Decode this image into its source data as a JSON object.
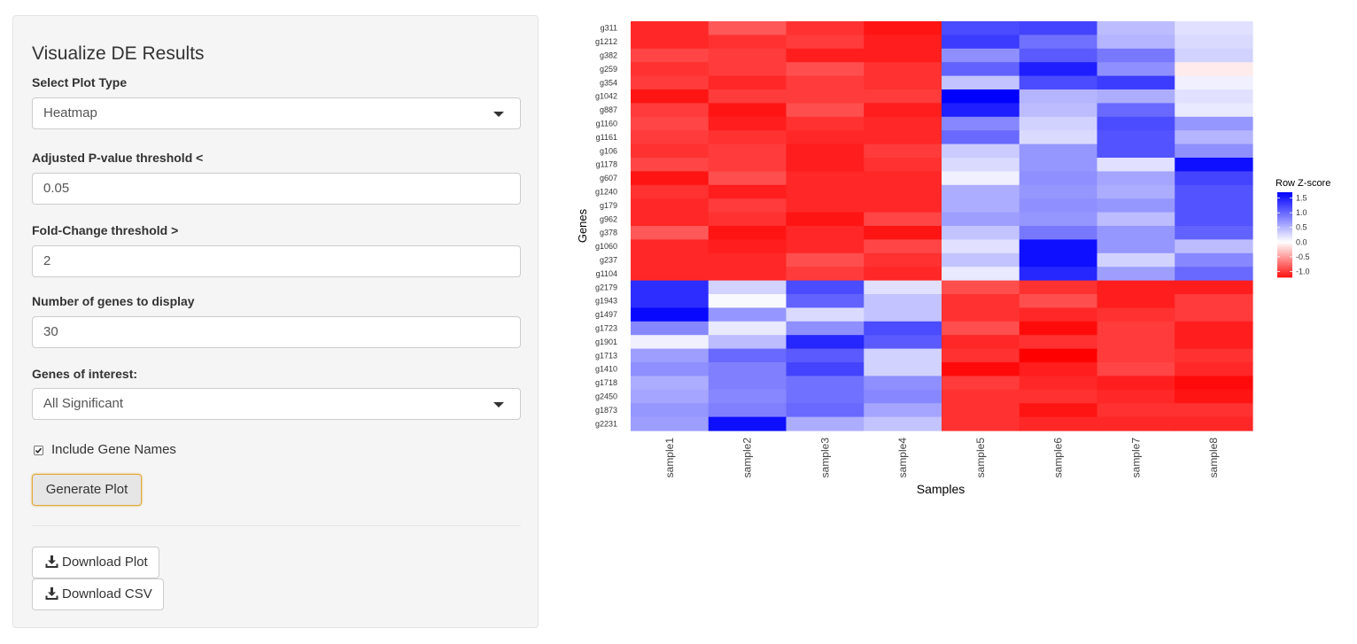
{
  "sidebar": {
    "title": "Visualize DE Results",
    "plot_type": {
      "label": "Select Plot Type",
      "value": "Heatmap"
    },
    "pvalue": {
      "label": "Adjusted P-value threshold <",
      "value": "0.05"
    },
    "fold_change": {
      "label": "Fold-Change threshold >",
      "value": "2"
    },
    "num_genes": {
      "label": "Number of genes to display",
      "value": "30"
    },
    "genes_of_interest": {
      "label": "Genes of interest:",
      "value": "All Significant"
    },
    "include_gene_names": {
      "label": "Include Gene Names",
      "checked": true
    },
    "generate_label": "Generate Plot",
    "download_plot_label": "Download Plot",
    "download_csv_label": "Download CSV",
    "icons": {
      "dropdown": "chevron-down-icon",
      "download": "download-icon",
      "checkbox": "checkmark-icon"
    }
  },
  "chart_data": {
    "type": "heatmap",
    "xlabel": "Samples",
    "ylabel": "Genes",
    "columns": [
      "sample1",
      "sample2",
      "sample3",
      "sample4",
      "sample5",
      "sample6",
      "sample7",
      "sample8"
    ],
    "rows": [
      "g311",
      "g1212",
      "g382",
      "g259",
      "g354",
      "g1042",
      "g887",
      "g1160",
      "g1161",
      "g106",
      "g1178",
      "g607",
      "g1240",
      "g179",
      "g962",
      "g378",
      "g1060",
      "g237",
      "g1104",
      "g2179",
      "g1943",
      "g1497",
      "g1723",
      "g1901",
      "g1713",
      "g1410",
      "g1718",
      "g2450",
      "g1873",
      "g2231"
    ],
    "values": [
      [
        -1.1,
        -0.85,
        -1.05,
        -1.2,
        1.2,
        1.25,
        0.45,
        0.2
      ],
      [
        -1.1,
        -1.05,
        -1.0,
        -1.15,
        1.3,
        0.95,
        0.5,
        0.25
      ],
      [
        -0.95,
        -1.0,
        -1.15,
        -1.15,
        0.75,
        1.1,
        0.9,
        0.3
      ],
      [
        -1.05,
        -1.0,
        -0.9,
        -1.05,
        1.05,
        1.5,
        0.75,
        -0.1
      ],
      [
        -1.0,
        -1.1,
        -1.0,
        -1.05,
        0.4,
        1.2,
        1.3,
        0.1
      ],
      [
        -1.2,
        -1.0,
        -1.0,
        -1.0,
        1.7,
        0.5,
        0.55,
        0.2
      ],
      [
        -1.0,
        -1.2,
        -0.9,
        -1.15,
        1.5,
        0.45,
        1.0,
        0.15
      ],
      [
        -0.95,
        -1.15,
        -1.05,
        -1.1,
        0.8,
        0.3,
        1.2,
        0.7
      ],
      [
        -1.0,
        -1.05,
        -1.1,
        -1.1,
        1.0,
        0.25,
        1.15,
        0.5
      ],
      [
        -1.05,
        -1.0,
        -1.15,
        -1.0,
        0.35,
        0.7,
        1.15,
        0.75
      ],
      [
        -0.95,
        -1.0,
        -1.15,
        -1.05,
        0.25,
        0.7,
        0.2,
        1.6
      ],
      [
        -1.2,
        -0.9,
        -1.1,
        -1.1,
        0.1,
        0.75,
        0.6,
        1.25
      ],
      [
        -1.05,
        -1.15,
        -1.1,
        -1.1,
        0.55,
        0.7,
        0.55,
        1.15
      ],
      [
        -1.1,
        -1.0,
        -1.1,
        -1.1,
        0.55,
        0.75,
        0.7,
        1.15
      ],
      [
        -1.1,
        -1.05,
        -1.2,
        -0.95,
        0.65,
        0.7,
        0.45,
        1.15
      ],
      [
        -0.85,
        -1.2,
        -1.1,
        -1.2,
        0.4,
        0.9,
        0.7,
        1.05
      ],
      [
        -1.1,
        -1.15,
        -1.1,
        -0.95,
        0.2,
        1.6,
        0.7,
        0.45
      ],
      [
        -1.1,
        -1.1,
        -0.9,
        -1.05,
        0.4,
        1.6,
        0.3,
        0.8
      ],
      [
        -1.1,
        -1.1,
        -1.0,
        -1.1,
        0.15,
        1.45,
        0.65,
        1.0
      ],
      [
        1.4,
        0.3,
        1.2,
        0.2,
        -0.9,
        -1.05,
        -1.15,
        -1.15
      ],
      [
        1.4,
        0.05,
        1.05,
        0.4,
        -1.05,
        -0.9,
        -1.15,
        -1.0
      ],
      [
        1.65,
        0.7,
        0.25,
        0.4,
        -1.05,
        -1.1,
        -1.05,
        -1.0
      ],
      [
        0.8,
        0.15,
        0.75,
        1.2,
        -0.9,
        -1.25,
        -1.0,
        -1.15
      ],
      [
        0.1,
        0.45,
        1.45,
        1.1,
        -1.1,
        -1.05,
        -1.0,
        -1.15
      ],
      [
        0.65,
        1.0,
        1.1,
        0.3,
        -1.05,
        -1.3,
        -1.0,
        -1.05
      ],
      [
        0.75,
        0.85,
        1.25,
        0.3,
        -1.25,
        -1.15,
        -0.95,
        -1.1
      ],
      [
        0.55,
        0.85,
        0.95,
        0.75,
        -1.0,
        -1.1,
        -1.15,
        -1.25
      ],
      [
        0.6,
        0.8,
        0.95,
        0.8,
        -1.05,
        -1.05,
        -1.1,
        -1.2
      ],
      [
        0.7,
        0.85,
        1.0,
        0.6,
        -1.05,
        -1.2,
        -1.05,
        -1.05
      ],
      [
        0.65,
        1.6,
        0.55,
        0.4,
        -1.05,
        -1.1,
        -1.1,
        -1.1
      ]
    ],
    "color_min": "#ff0000",
    "color_mid": "#ffffff",
    "color_max": "#0000ff",
    "range": [
      -1.3,
      1.7
    ],
    "legend": {
      "title": "Row Z-score",
      "ticks": [
        "1.5",
        "1.0",
        "0.5",
        "0.0",
        "-0.5",
        "-1.0"
      ],
      "tick_values": [
        1.5,
        1.0,
        0.5,
        0.0,
        -0.5,
        -1.0
      ],
      "placement": "right"
    }
  }
}
